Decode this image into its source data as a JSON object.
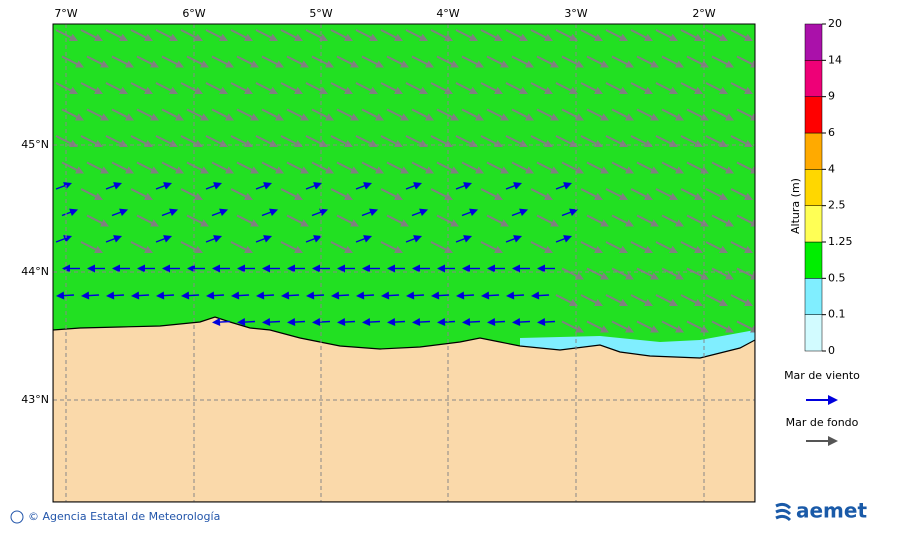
{
  "map": {
    "lon_labels": [
      "7°W",
      "6°W",
      "5°W",
      "4°W",
      "3°W",
      "2°W"
    ],
    "lat_labels": [
      "45°N",
      "44°N",
      "43°N"
    ]
  },
  "colorbar": {
    "title": "Altura (m)",
    "levels": [
      0,
      0.1,
      0.5,
      1.25,
      2.5,
      4,
      6,
      9,
      14,
      20
    ],
    "colors": [
      "#d2fbff",
      "#80eeff",
      "#00ee00",
      "#ffff55",
      "#ffd700",
      "#ffaa00",
      "#ff0000",
      "#ee0077",
      "#aa11aa"
    ]
  },
  "legend": [
    {
      "label": "Mar de viento",
      "color": "#0000dd"
    },
    {
      "label": "Mar de fondo",
      "color": "#555555"
    }
  ],
  "footer": {
    "credit": "© Agencia Estatal de Meteorología",
    "logo": "aemet"
  }
}
